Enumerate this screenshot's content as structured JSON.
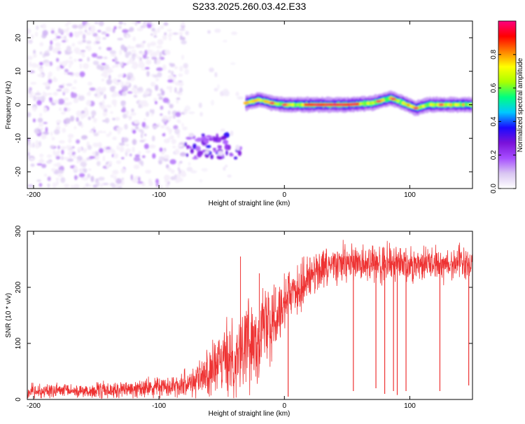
{
  "title": "S233.2025.260.03.42.E33",
  "chart_data": [
    {
      "type": "heatmap",
      "xlabel": "Height of straight line (km)",
      "ylabel": "Frequency (Hz)",
      "xlim": [
        -205,
        150
      ],
      "ylim": [
        -25,
        25
      ],
      "xticks": [
        -200,
        -100,
        0,
        100
      ],
      "yticks": [
        -20,
        -10,
        0,
        10,
        20
      ],
      "colorbar": {
        "label": "Normalized spectral amplitude",
        "range": [
          0,
          1
        ],
        "ticks": [
          0.0,
          0.2,
          0.4,
          0.6,
          0.8
        ],
        "tick_labels": [
          "0.0",
          "0.2",
          "0.4",
          "0.6",
          "0.8"
        ],
        "colormap": [
          "#ffffff",
          "#d9c6f2",
          "#a64dff",
          "#7a12d9",
          "#1a0aff",
          "#00c8ff",
          "#00ff80",
          "#aaff00",
          "#ffff00",
          "#ff8000",
          "#ff0000",
          "#ff0080"
        ]
      },
      "regions": [
        {
          "x": [
            -205,
            -80
          ],
          "freq_band": [
            -25,
            25
          ],
          "amplitude": [
            0.05,
            0.15
          ],
          "description": "scattered noise"
        },
        {
          "x": [
            -80,
            -35
          ],
          "freq_band": [
            -16,
            -9
          ],
          "amplitude": [
            0.15,
            0.35
          ]
        },
        {
          "x": [
            -80,
            -35
          ],
          "freq_band": [
            -25,
            25
          ],
          "amplitude": [
            0.02,
            0.06
          ]
        },
        {
          "x": [
            -35,
            150
          ],
          "freq_band": [
            -2,
            3
          ],
          "amplitude": [
            0.3,
            1.0
          ]
        }
      ],
      "ridge_centerline": [
        {
          "x": -31,
          "y": 0.5
        },
        {
          "x": -20,
          "y": 1.5
        },
        {
          "x": -10,
          "y": 0.5
        },
        {
          "x": 0,
          "y": 0
        },
        {
          "x": 20,
          "y": 0
        },
        {
          "x": 50,
          "y": 0
        },
        {
          "x": 70,
          "y": 0.5
        },
        {
          "x": 85,
          "y": 2
        },
        {
          "x": 95,
          "y": 0.5
        },
        {
          "x": 105,
          "y": -1
        },
        {
          "x": 115,
          "y": 0
        },
        {
          "x": 130,
          "y": 0
        },
        {
          "x": 150,
          "y": 0
        }
      ],
      "ridge_peak_x": [
        -10,
        0,
        25,
        35,
        40,
        45,
        55,
        75,
        87,
        105,
        125
      ]
    },
    {
      "type": "line",
      "xlabel": "Height of straight line (km)",
      "ylabel": "SNR (10 * v/v)",
      "xlim": [
        -205,
        150
      ],
      "ylim": [
        0,
        300
      ],
      "xticks": [
        -200,
        -100,
        0,
        100
      ],
      "yticks": [
        0,
        100,
        200,
        300
      ],
      "color": "#ee3333",
      "envelope": [
        {
          "x": -205,
          "mean": 15,
          "noise": 18
        },
        {
          "x": -150,
          "mean": 15,
          "noise": 20
        },
        {
          "x": -120,
          "mean": 18,
          "noise": 22
        },
        {
          "x": -90,
          "mean": 25,
          "noise": 24
        },
        {
          "x": -70,
          "mean": 35,
          "noise": 45
        },
        {
          "x": -55,
          "mean": 55,
          "noise": 70
        },
        {
          "x": -40,
          "mean": 80,
          "noise": 110
        },
        {
          "x": -20,
          "mean": 120,
          "noise": 120
        },
        {
          "x": 0,
          "mean": 175,
          "noise": 80
        },
        {
          "x": 20,
          "mean": 220,
          "noise": 60
        },
        {
          "x": 40,
          "mean": 240,
          "noise": 50
        },
        {
          "x": 150,
          "mean": 245,
          "noise": 50
        }
      ],
      "spikes": [
        {
          "x": -35,
          "y": 255
        },
        {
          "x": -20,
          "y": 225
        },
        {
          "x": -7,
          "y": 200
        },
        {
          "x": 3,
          "y": 220
        }
      ],
      "dropouts": [
        {
          "x": 3,
          "y": 5
        },
        {
          "x": 55,
          "y": 15
        },
        {
          "x": 73,
          "y": 20
        },
        {
          "x": 80,
          "y": 10
        },
        {
          "x": 87,
          "y": 15
        },
        {
          "x": 90,
          "y": 8
        },
        {
          "x": 97,
          "y": 15
        },
        {
          "x": 124,
          "y": 15
        },
        {
          "x": 147,
          "y": 25
        }
      ]
    }
  ]
}
